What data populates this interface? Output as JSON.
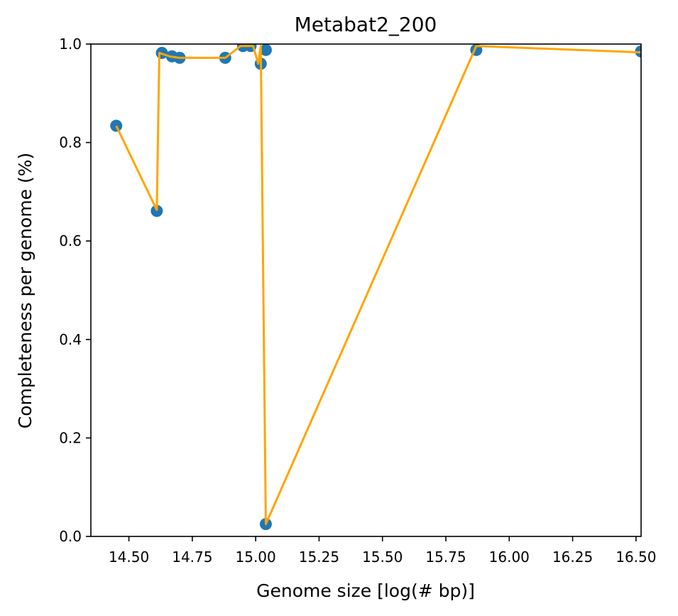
{
  "chart_data": {
    "type": "scatter",
    "title": "Metabat2_200",
    "xlabel": "Genome size [log(# bp)]",
    "ylabel": "Completeness per genome (%)",
    "xlim": [
      14.35,
      16.52
    ],
    "ylim": [
      0.0,
      1.0
    ],
    "grid": false,
    "x_ticks": [
      "14.50",
      "14.75",
      "15.00",
      "15.25",
      "15.50",
      "15.75",
      "16.00",
      "16.25",
      "16.50"
    ],
    "y_ticks": [
      "0.0",
      "0.2",
      "0.4",
      "0.6",
      "0.8",
      "1.0"
    ],
    "colors": {
      "points": "#1f77b4",
      "line": "#ffa500"
    },
    "series": [
      {
        "kind": "scatter",
        "x": [
          14.45,
          14.61,
          14.63,
          14.67,
          14.7,
          14.88,
          14.95,
          14.98,
          15.02,
          15.04,
          15.04,
          15.87,
          16.52
        ],
        "y": [
          0.834,
          0.661,
          0.982,
          0.975,
          0.972,
          0.972,
          0.996,
          0.996,
          0.96,
          0.988,
          0.025,
          0.988,
          0.985
        ]
      },
      {
        "kind": "line",
        "x": [
          14.45,
          14.61,
          14.62,
          14.66,
          14.7,
          14.88,
          14.94,
          14.99,
          15.01,
          15.02,
          15.04,
          15.87,
          16.52
        ],
        "y": [
          0.834,
          0.663,
          0.982,
          0.975,
          0.972,
          0.972,
          0.996,
          0.996,
          0.96,
          0.996,
          0.025,
          0.996,
          0.983
        ]
      }
    ]
  }
}
